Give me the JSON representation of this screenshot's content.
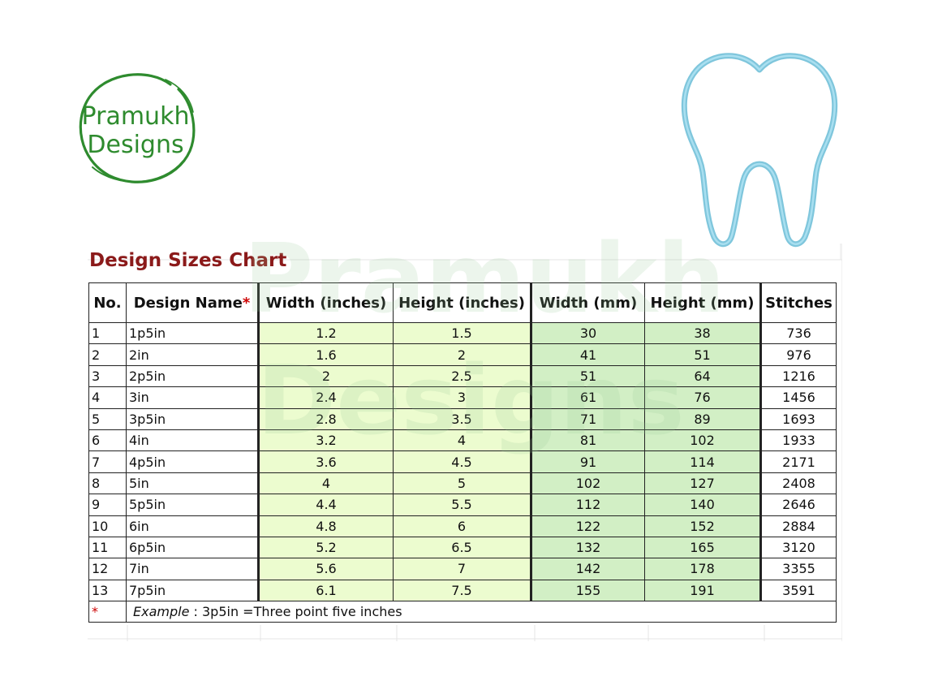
{
  "logo": {
    "line1": "Pramukh",
    "line2": "Designs",
    "color": "#2e8b2e"
  },
  "watermark": {
    "line1": "Pramukh",
    "line2": "Designs"
  },
  "design_icon": "tooth-outline-icon",
  "chart": {
    "title": "Design Sizes Chart",
    "headers": {
      "no": "No.",
      "name": "Design Name",
      "name_marker": "*",
      "width_in": "Width (inches)",
      "height_in": "Height (inches)",
      "width_mm": "Width (mm)",
      "height_mm": "Height (mm)",
      "stitches": "Stitches"
    },
    "rows": [
      {
        "no": "1",
        "name": "1p5in",
        "wi": "1.2",
        "hi": "1.5",
        "wm": "30",
        "hm": "38",
        "st": "736"
      },
      {
        "no": "2",
        "name": "2in",
        "wi": "1.6",
        "hi": "2",
        "wm": "41",
        "hm": "51",
        "st": "976"
      },
      {
        "no": "3",
        "name": "2p5in",
        "wi": "2",
        "hi": "2.5",
        "wm": "51",
        "hm": "64",
        "st": "1216"
      },
      {
        "no": "4",
        "name": "3in",
        "wi": "2.4",
        "hi": "3",
        "wm": "61",
        "hm": "76",
        "st": "1456"
      },
      {
        "no": "5",
        "name": "3p5in",
        "wi": "2.8",
        "hi": "3.5",
        "wm": "71",
        "hm": "89",
        "st": "1693"
      },
      {
        "no": "6",
        "name": "4in",
        "wi": "3.2",
        "hi": "4",
        "wm": "81",
        "hm": "102",
        "st": "1933"
      },
      {
        "no": "7",
        "name": "4p5in",
        "wi": "3.6",
        "hi": "4.5",
        "wm": "91",
        "hm": "114",
        "st": "2171"
      },
      {
        "no": "8",
        "name": "5in",
        "wi": "4",
        "hi": "5",
        "wm": "102",
        "hm": "127",
        "st": "2408"
      },
      {
        "no": "9",
        "name": "5p5in",
        "wi": "4.4",
        "hi": "5.5",
        "wm": "112",
        "hm": "140",
        "st": "2646"
      },
      {
        "no": "10",
        "name": "6in",
        "wi": "4.8",
        "hi": "6",
        "wm": "122",
        "hm": "152",
        "st": "2884"
      },
      {
        "no": "11",
        "name": "6p5in",
        "wi": "5.2",
        "hi": "6.5",
        "wm": "132",
        "hm": "165",
        "st": "3120"
      },
      {
        "no": "12",
        "name": "7in",
        "wi": "5.6",
        "hi": "7",
        "wm": "142",
        "hm": "178",
        "st": "3355"
      },
      {
        "no": "13",
        "name": "7p5in",
        "wi": "6.1",
        "hi": "7.5",
        "wm": "155",
        "hm": "191",
        "st": "3591"
      }
    ],
    "footnote": {
      "marker": "*",
      "label": "Example",
      "text": " : 3p5in =Three point five inches"
    },
    "colors": {
      "title": "#8b1a1a",
      "inches_columns": "#ecfccf",
      "mm_columns": "#d2efc5",
      "required_marker": "#cc0000",
      "tooth_outline": "#7fc6dc"
    }
  }
}
